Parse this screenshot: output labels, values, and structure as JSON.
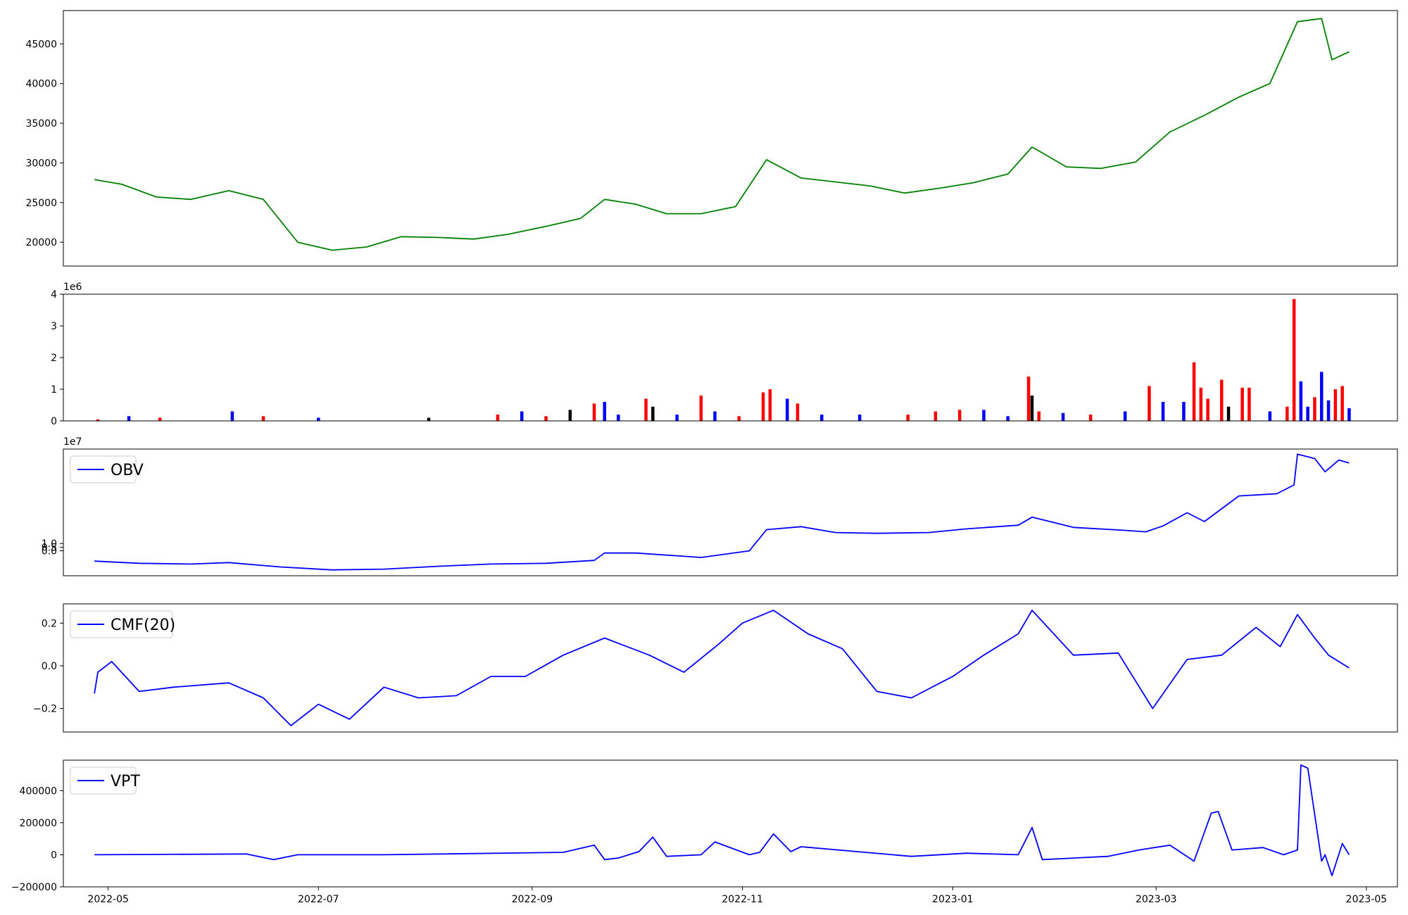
{
  "chart_data": [
    {
      "type": "line",
      "title": "",
      "xlabel": "",
      "ylabel": "",
      "x_range": [
        "2022-04-27",
        "2023-04-26"
      ],
      "ylim": [
        17000,
        49200
      ],
      "yticks": [
        20000,
        25000,
        30000,
        35000,
        40000,
        45000
      ],
      "ytick_labels": [
        "20000",
        "25000",
        "30000",
        "35000",
        "40000",
        "45000"
      ],
      "grid": false,
      "color": "#008000",
      "series": [
        {
          "x": [
            "2022-04-27",
            "2022-05-05",
            "2022-05-15",
            "2022-05-25",
            "2022-06-05",
            "2022-06-15",
            "2022-06-25",
            "2022-07-05",
            "2022-07-15",
            "2022-07-25",
            "2022-08-05",
            "2022-08-15",
            "2022-08-25",
            "2022-09-05",
            "2022-09-15",
            "2022-09-22",
            "2022-10-01",
            "2022-10-10",
            "2022-10-20",
            "2022-10-30",
            "2022-11-08",
            "2022-11-18",
            "2022-11-28",
            "2022-12-08",
            "2022-12-18",
            "2022-12-28",
            "2023-01-07",
            "2023-01-17",
            "2023-01-24",
            "2023-02-03",
            "2023-02-13",
            "2023-02-23",
            "2023-03-05",
            "2023-03-15",
            "2023-03-25",
            "2023-04-03",
            "2023-04-11",
            "2023-04-18",
            "2023-04-21",
            "2023-04-26"
          ],
          "values": [
            27900,
            27300,
            25700,
            25400,
            26500,
            25400,
            20000,
            19000,
            19400,
            20700,
            20600,
            20400,
            21000,
            22000,
            23000,
            25400,
            24800,
            23600,
            23600,
            24500,
            30400,
            28100,
            27600,
            27100,
            26200,
            26800,
            27500,
            28600,
            32000,
            29500,
            29300,
            30100,
            33900,
            36000,
            38300,
            40000,
            47800,
            48200,
            43000,
            44000
          ]
        }
      ]
    },
    {
      "type": "bar",
      "title": "",
      "xlabel": "",
      "ylabel": "",
      "y_multiplier": "1e6",
      "ylim": [
        0,
        4
      ],
      "yticks": [
        0,
        1,
        2,
        3,
        4
      ],
      "ytick_labels": [
        "0",
        "1",
        "2",
        "3",
        "4"
      ],
      "grid": false,
      "colors": {
        "up": "#ff0000",
        "down": "#0000ff",
        "flat": "#000000"
      },
      "series": [
        {
          "x": [
            "2022-04-28",
            "2022-05-07",
            "2022-05-16",
            "2022-06-06",
            "2022-06-15",
            "2022-07-01",
            "2022-08-02",
            "2022-08-22",
            "2022-08-29",
            "2022-09-05",
            "2022-09-12",
            "2022-09-19",
            "2022-09-22",
            "2022-09-26",
            "2022-10-04",
            "2022-10-06",
            "2022-10-13",
            "2022-10-20",
            "2022-10-24",
            "2022-10-31",
            "2022-11-07",
            "2022-11-09",
            "2022-11-14",
            "2022-11-17",
            "2022-11-24",
            "2022-12-05",
            "2022-12-19",
            "2022-12-27",
            "2023-01-03",
            "2023-01-10",
            "2023-01-17",
            "2023-01-23",
            "2023-01-24",
            "2023-01-26",
            "2023-02-02",
            "2023-02-10",
            "2023-02-20",
            "2023-02-27",
            "2023-03-03",
            "2023-03-09",
            "2023-03-12",
            "2023-03-14",
            "2023-03-16",
            "2023-03-20",
            "2023-03-22",
            "2023-03-26",
            "2023-03-28",
            "2023-04-03",
            "2023-04-08",
            "2023-04-10",
            "2023-04-12",
            "2023-04-14",
            "2023-04-16",
            "2023-04-18",
            "2023-04-20",
            "2023-04-22",
            "2023-04-24",
            "2023-04-26"
          ],
          "values": [
            0.05,
            0.15,
            0.1,
            0.3,
            0.15,
            0.1,
            0.1,
            0.2,
            0.3,
            0.15,
            0.35,
            0.55,
            0.6,
            0.2,
            0.7,
            0.45,
            0.2,
            0.8,
            0.3,
            0.15,
            0.9,
            1.0,
            0.7,
            0.55,
            0.2,
            0.2,
            0.2,
            0.3,
            0.35,
            0.35,
            0.15,
            1.4,
            0.8,
            0.3,
            0.25,
            0.2,
            0.3,
            1.1,
            0.6,
            0.6,
            1.85,
            1.05,
            0.7,
            1.3,
            0.45,
            1.05,
            1.05,
            0.3,
            0.45,
            3.85,
            1.25,
            0.45,
            0.75,
            1.55,
            0.65,
            1.0,
            1.1,
            0.4
          ],
          "direction": [
            "up",
            "down",
            "up",
            "down",
            "up",
            "down",
            "flat",
            "up",
            "down",
            "up",
            "flat",
            "up",
            "down",
            "down",
            "up",
            "flat",
            "down",
            "up",
            "down",
            "up",
            "up",
            "up",
            "down",
            "up",
            "down",
            "down",
            "up",
            "up",
            "up",
            "down",
            "down",
            "up",
            "flat",
            "up",
            "down",
            "up",
            "down",
            "up",
            "down",
            "down",
            "up",
            "up",
            "up",
            "up",
            "flat",
            "up",
            "up",
            "down",
            "up",
            "up",
            "down",
            "down",
            "up",
            "down",
            "down",
            "up",
            "up",
            "down"
          ]
        }
      ]
    },
    {
      "type": "line",
      "title": "",
      "xlabel": "",
      "ylabel": "",
      "y_multiplier": "1e7",
      "ylim": [
        -3.4,
        13.9
      ],
      "yticks": [
        0.0,
        0.5,
        1.0
      ],
      "ytick_labels": [
        "0.0",
        "0.5",
        "1.0"
      ],
      "grid": false,
      "legend_position": "upper-left",
      "color": "#0000ff",
      "series": [
        {
          "name": "OBV",
          "x": [
            "2022-04-27",
            "2022-05-10",
            "2022-05-25",
            "2022-06-05",
            "2022-06-20",
            "2022-07-05",
            "2022-07-20",
            "2022-08-05",
            "2022-08-20",
            "2022-09-05",
            "2022-09-19",
            "2022-09-22",
            "2022-10-01",
            "2022-10-20",
            "2022-11-03",
            "2022-11-08",
            "2022-11-18",
            "2022-11-28",
            "2022-12-10",
            "2022-12-25",
            "2023-01-05",
            "2023-01-20",
            "2023-01-24",
            "2023-02-05",
            "2023-02-20",
            "2023-02-26",
            "2023-03-03",
            "2023-03-10",
            "2023-03-15",
            "2023-03-25",
            "2023-04-05",
            "2023-04-10",
            "2023-04-11",
            "2023-04-16",
            "2023-04-19",
            "2023-04-23",
            "2023-04-26"
          ],
          "values": [
            -1.4,
            -1.7,
            -1.8,
            -1.6,
            -2.2,
            -2.6,
            -2.5,
            -2.1,
            -1.8,
            -1.7,
            -1.3,
            -0.3,
            -0.3,
            -0.9,
            0.0,
            2.9,
            3.3,
            2.5,
            2.4,
            2.5,
            3.0,
            3.5,
            4.6,
            3.2,
            2.8,
            2.6,
            3.4,
            5.2,
            4.0,
            7.5,
            7.8,
            9.0,
            13.2,
            12.6,
            10.8,
            12.4,
            12.0
          ]
        }
      ]
    },
    {
      "type": "line",
      "title": "",
      "xlabel": "",
      "ylabel": "",
      "ylim": [
        -0.31,
        0.29
      ],
      "yticks": [
        -0.2,
        0.0,
        0.2
      ],
      "ytick_labels": [
        "−0.2",
        "0.0",
        "0.2"
      ],
      "grid": false,
      "legend_position": "upper-left",
      "color": "#0000ff",
      "series": [
        {
          "name": "CMF(20)",
          "x": [
            "2022-04-27",
            "2022-04-28",
            "2022-05-02",
            "2022-05-10",
            "2022-05-20",
            "2022-06-05",
            "2022-06-15",
            "2022-06-23",
            "2022-07-01",
            "2022-07-10",
            "2022-07-20",
            "2022-07-30",
            "2022-08-10",
            "2022-08-20",
            "2022-08-30",
            "2022-09-10",
            "2022-09-22",
            "2022-10-05",
            "2022-10-15",
            "2022-10-25",
            "2022-11-01",
            "2022-11-10",
            "2022-11-20",
            "2022-11-30",
            "2022-12-10",
            "2022-12-20",
            "2023-01-01",
            "2023-01-10",
            "2023-01-20",
            "2023-01-24",
            "2023-02-05",
            "2023-02-18",
            "2023-02-28",
            "2023-03-10",
            "2023-03-20",
            "2023-03-30",
            "2023-04-06",
            "2023-04-11",
            "2023-04-16",
            "2023-04-20",
            "2023-04-26"
          ],
          "values": [
            -0.13,
            -0.03,
            0.02,
            -0.12,
            -0.1,
            -0.08,
            -0.15,
            -0.28,
            -0.18,
            -0.25,
            -0.1,
            -0.15,
            -0.14,
            -0.05,
            -0.05,
            0.05,
            0.13,
            0.05,
            -0.03,
            0.1,
            0.2,
            0.26,
            0.15,
            0.08,
            -0.12,
            -0.15,
            -0.05,
            0.05,
            0.15,
            0.26,
            0.05,
            0.06,
            -0.2,
            0.03,
            0.05,
            0.18,
            0.09,
            0.24,
            0.13,
            0.05,
            -0.01
          ]
        }
      ]
    },
    {
      "type": "line",
      "title": "",
      "xlabel": "",
      "ylabel": "",
      "ylim": [
        -200000,
        590000
      ],
      "yticks": [
        -200000,
        0,
        200000,
        400000
      ],
      "ytick_labels": [
        "−200000",
        "0",
        "200000",
        "400000"
      ],
      "xticks": [
        "2022-05-01",
        "2022-07-01",
        "2022-09-01",
        "2022-11-01",
        "2023-01-01",
        "2023-03-01",
        "2023-05-01"
      ],
      "xtick_labels": [
        "2022-05",
        "2022-07",
        "2022-09",
        "2022-11",
        "2023-01",
        "2023-03",
        "2023-05"
      ],
      "grid": false,
      "legend_position": "upper-left",
      "color": "#0000ff",
      "series": [
        {
          "name": "VPT",
          "x": [
            "2022-04-27",
            "2022-06-10",
            "2022-06-18",
            "2022-06-25",
            "2022-07-20",
            "2022-09-10",
            "2022-09-19",
            "2022-09-22",
            "2022-09-26",
            "2022-10-02",
            "2022-10-06",
            "2022-10-10",
            "2022-10-20",
            "2022-10-24",
            "2022-11-03",
            "2022-11-06",
            "2022-11-10",
            "2022-11-15",
            "2022-11-18",
            "2022-12-20",
            "2023-01-05",
            "2023-01-20",
            "2023-01-24",
            "2023-01-27",
            "2023-02-15",
            "2023-02-24",
            "2023-03-05",
            "2023-03-12",
            "2023-03-17",
            "2023-03-19",
            "2023-03-23",
            "2023-04-01",
            "2023-04-07",
            "2023-04-11",
            "2023-04-12",
            "2023-04-14",
            "2023-04-18",
            "2023-04-19",
            "2023-04-21",
            "2023-04-24",
            "2023-04-26"
          ],
          "values": [
            0,
            5000,
            -30000,
            0,
            0,
            15000,
            60000,
            -30000,
            -20000,
            20000,
            110000,
            -10000,
            0,
            80000,
            0,
            15000,
            130000,
            20000,
            50000,
            -10000,
            10000,
            0,
            170000,
            -30000,
            -10000,
            30000,
            60000,
            -40000,
            260000,
            270000,
            30000,
            45000,
            0,
            30000,
            560000,
            540000,
            -40000,
            0,
            -130000,
            70000,
            0
          ]
        }
      ]
    }
  ]
}
